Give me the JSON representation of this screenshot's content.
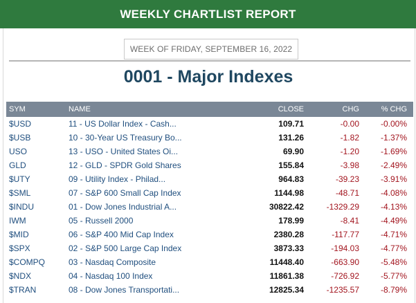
{
  "header": {
    "title": "WEEKLY CHARTLIST REPORT"
  },
  "week": {
    "label": "WEEK OF FRIDAY, SEPTEMBER 16, 2022"
  },
  "list": {
    "title": "0001 - Major Indexes"
  },
  "colors": {
    "header_bg": "#2f7a3e",
    "table_header_bg": "#7a8796",
    "link": "#1f4e7e",
    "negative": "#a2141e"
  },
  "table": {
    "columns": {
      "sym": "SYM",
      "name": "NAME",
      "close": "CLOSE",
      "chg": "CHG",
      "pct": "% CHG"
    },
    "rows": [
      {
        "sym": "$USD",
        "name": "11 - US Dollar Index - Cash...",
        "close": "109.71",
        "chg": "-0.00",
        "pct": "-0.00%"
      },
      {
        "sym": "$USB",
        "name": "10 - 30-Year US Treasury Bo...",
        "close": "131.26",
        "chg": "-1.82",
        "pct": "-1.37%"
      },
      {
        "sym": "USO",
        "name": "13 - USO - United States Oi...",
        "close": "69.90",
        "chg": "-1.20",
        "pct": "-1.69%"
      },
      {
        "sym": "GLD",
        "name": "12 - GLD - SPDR Gold Shares",
        "close": "155.84",
        "chg": "-3.98",
        "pct": "-2.49%"
      },
      {
        "sym": "$UTY",
        "name": "09 - Utility Index - Philad...",
        "close": "964.83",
        "chg": "-39.23",
        "pct": "-3.91%"
      },
      {
        "sym": "$SML",
        "name": "07 - S&P 600 Small Cap Index",
        "close": "1144.98",
        "chg": "-48.71",
        "pct": "-4.08%"
      },
      {
        "sym": "$INDU",
        "name": "01 - Dow Jones Industrial A...",
        "close": "30822.42",
        "chg": "-1329.29",
        "pct": "-4.13%"
      },
      {
        "sym": "IWM",
        "name": "05 - Russell 2000",
        "close": "178.99",
        "chg": "-8.41",
        "pct": "-4.49%"
      },
      {
        "sym": "$MID",
        "name": "06 - S&P 400 Mid Cap Index",
        "close": "2380.28",
        "chg": "-117.77",
        "pct": "-4.71%"
      },
      {
        "sym": "$SPX",
        "name": "02 - S&P 500 Large Cap Index",
        "close": "3873.33",
        "chg": "-194.03",
        "pct": "-4.77%"
      },
      {
        "sym": "$COMPQ",
        "name": "03 - Nasdaq Composite",
        "close": "11448.40",
        "chg": "-663.90",
        "pct": "-5.48%"
      },
      {
        "sym": "$NDX",
        "name": "04 - Nasdaq 100 Index",
        "close": "11861.38",
        "chg": "-726.92",
        "pct": "-5.77%"
      },
      {
        "sym": "$TRAN",
        "name": "08 - Dow Jones Transportati...",
        "close": "12825.34",
        "chg": "-1235.57",
        "pct": "-8.79%"
      }
    ]
  }
}
